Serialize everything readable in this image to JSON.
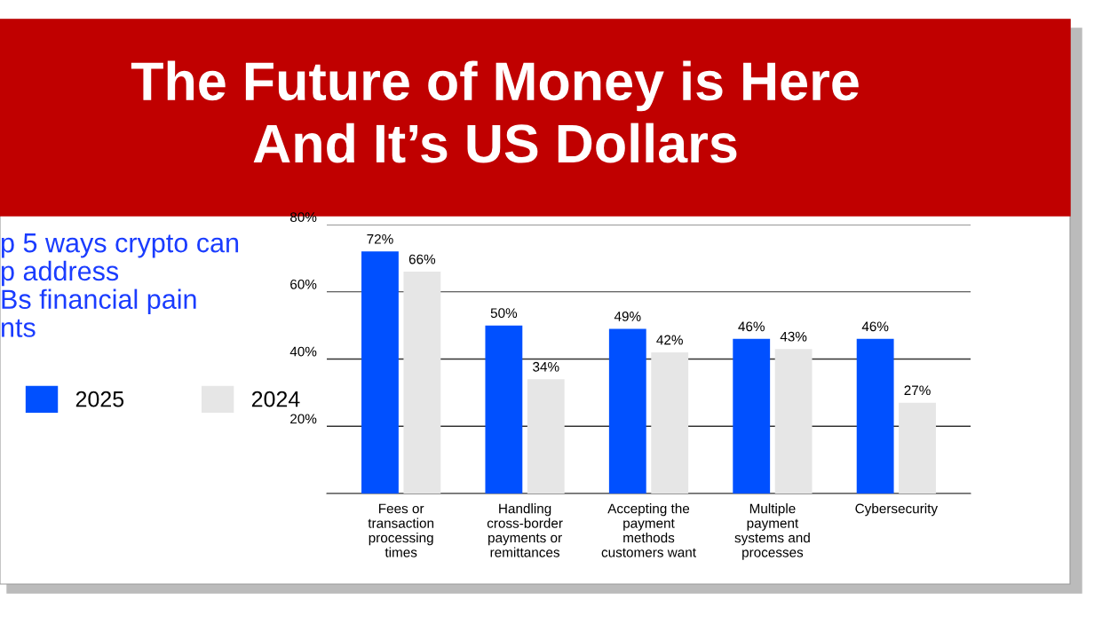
{
  "chart_data": {
    "type": "bar",
    "title": "The Future of Money is Here\nAnd It’s US Dollars",
    "subtitle": "p 5 ways crypto can\np address\nBs financial pain\nnts",
    "categories": [
      "Fees or\ntransaction\nprocessing\ntimes",
      "Handling\ncross-border\npayments or\nremittances",
      "Accepting the\npayment\nmethods\ncustomers want",
      "Multiple\npayment\nsystems and\nprocesses",
      "Cybersecurity"
    ],
    "series": [
      {
        "name": "2025",
        "color": "#0050ff",
        "values": [
          72,
          50,
          49,
          46,
          46
        ],
        "value_labels": [
          "72%",
          "50%",
          "49%",
          "46%",
          "46%"
        ]
      },
      {
        "name": "2024",
        "color": "#e6e6e6",
        "values": [
          66,
          34,
          42,
          43,
          27
        ],
        "value_labels": [
          "66%",
          "34%",
          "42%",
          "43%",
          "27%"
        ]
      }
    ],
    "ylim": [
      0,
      80
    ],
    "yticks": [
      {
        "value": 0,
        "label": null
      },
      {
        "value": 20,
        "label": "20%"
      },
      {
        "value": 40,
        "label": "40%"
      },
      {
        "value": 60,
        "label": "60%"
      },
      {
        "value": 80,
        "label": "80%"
      }
    ],
    "grid": "y",
    "legend": "left"
  }
}
